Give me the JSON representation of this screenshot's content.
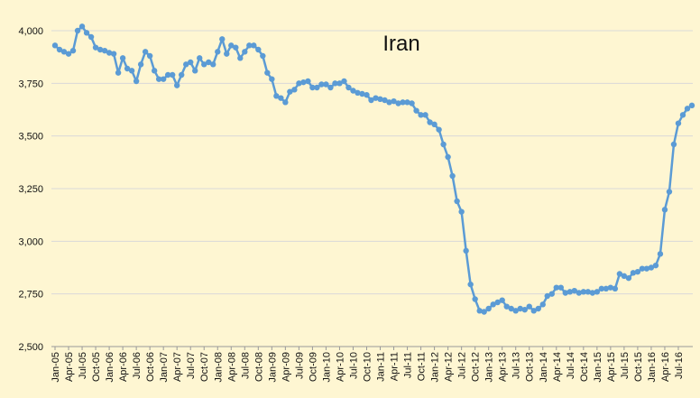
{
  "chart_data": {
    "type": "line",
    "title": "Iran",
    "xlabel": "",
    "ylabel": "",
    "ylim": [
      2500,
      4000
    ],
    "yticks": [
      2500,
      2750,
      3000,
      3250,
      3500,
      3750,
      4000
    ],
    "ytick_labels": [
      "2,500",
      "2,750",
      "3,000",
      "3,250",
      "3,500",
      "3,750",
      "4,000"
    ],
    "xtick_labels": [
      "Jan-05",
      "Apr-05",
      "Jul-05",
      "Oct-05",
      "Jan-06",
      "Apr-06",
      "Jul-06",
      "Oct-06",
      "Jan-07",
      "Apr-07",
      "Jul-07",
      "Oct-07",
      "Jan-08",
      "Apr-08",
      "Jul-08",
      "Oct-08",
      "Jan-09",
      "Apr-09",
      "Jul-09",
      "Oct-09",
      "Jan-10",
      "Apr-10",
      "Jul-10",
      "Oct-10",
      "Jan-11",
      "Apr-11",
      "Jul-11",
      "Oct-11",
      "Jan-12",
      "Apr-12",
      "Jul-12",
      "Oct-12",
      "Jan-13",
      "Apr-13",
      "Jul-13",
      "Oct-13",
      "Jan-14",
      "Apr-14",
      "Jul-14",
      "Oct-14",
      "Jan-15",
      "Apr-15",
      "Jul-15",
      "Oct-15",
      "Jan-16",
      "Apr-16",
      "Jul-16"
    ],
    "grid": true,
    "line_color": "#5b9bd5",
    "series": [
      {
        "values": [
          3930,
          3910,
          3900,
          3890,
          3905,
          4000,
          4020,
          3990,
          3970,
          3920,
          3910,
          3905,
          3895,
          3890,
          3800,
          3870,
          3820,
          3810,
          3760,
          3840,
          3900,
          3880,
          3810,
          3770,
          3770,
          3790,
          3790,
          3740,
          3790,
          3840,
          3850,
          3810,
          3870,
          3840,
          3850,
          3840,
          3900,
          3960,
          3890,
          3930,
          3920,
          3870,
          3900,
          3930,
          3930,
          3910,
          3880,
          3800,
          3770,
          3690,
          3680,
          3660,
          3710,
          3720,
          3750,
          3755,
          3760,
          3730,
          3730,
          3745,
          3745,
          3730,
          3750,
          3750,
          3760,
          3730,
          3715,
          3705,
          3700,
          3695,
          3670,
          3680,
          3675,
          3670,
          3660,
          3665,
          3655,
          3660,
          3660,
          3655,
          3620,
          3600,
          3600,
          3565,
          3555,
          3530,
          3460,
          3400,
          3310,
          3190,
          3140,
          2955,
          2795,
          2725,
          2670,
          2665,
          2680,
          2700,
          2710,
          2720,
          2690,
          2680,
          2670,
          2680,
          2675,
          2690,
          2670,
          2680,
          2700,
          2740,
          2750,
          2780,
          2780,
          2755,
          2760,
          2765,
          2755,
          2760,
          2760,
          2755,
          2760,
          2775,
          2775,
          2780,
          2775,
          2845,
          2835,
          2825,
          2850,
          2855,
          2870,
          2870,
          2875,
          2885,
          2940,
          3150,
          3235,
          3460,
          3560,
          3600,
          3630,
          3645
        ]
      }
    ]
  }
}
